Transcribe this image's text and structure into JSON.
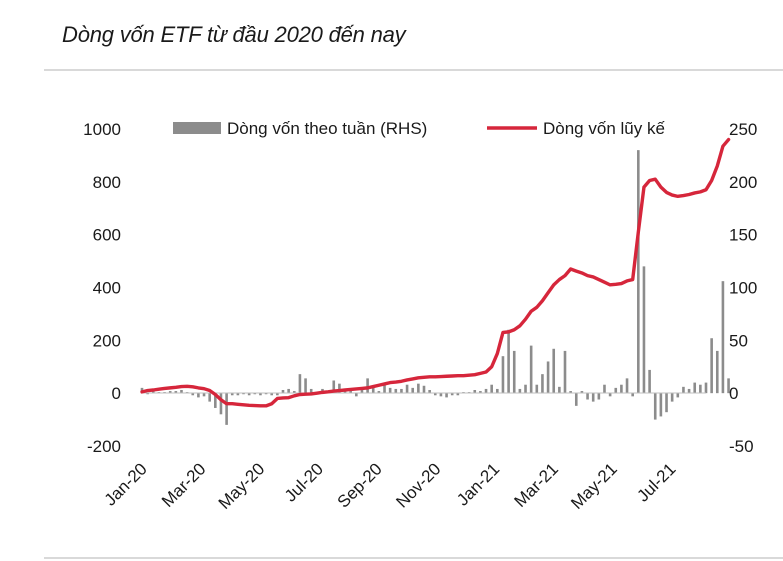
{
  "chart_data": {
    "type": "bar+line",
    "title": "Dòng vốn ETF từ đầu 2020 đến nay",
    "y_left": {
      "ylim": [
        -200,
        1000
      ],
      "ticks": [
        "1000",
        "800",
        "600",
        "400",
        "200",
        "0",
        "-200"
      ],
      "values": [
        1000,
        800,
        600,
        400,
        200,
        0,
        -200
      ]
    },
    "y_right": {
      "ylim": [
        -50,
        250
      ],
      "ticks": [
        "250",
        "200",
        "150",
        "100",
        "50",
        "0",
        "-50"
      ],
      "values": [
        250,
        200,
        150,
        100,
        50,
        0,
        -50
      ]
    },
    "x_ticks": [
      "Jan-20",
      "Mar-20",
      "May-20",
      "Jul-20",
      "Sep-20",
      "Nov-20",
      "Jan-21",
      "Mar-21",
      "May-21",
      "Jul-21"
    ],
    "legend": [
      {
        "name": "Dòng vốn theo tuần (RHS)",
        "kind": "bar",
        "color": "#8c8c8c"
      },
      {
        "name": "Dòng vốn lũy kế",
        "kind": "line",
        "color": "#d6263b"
      }
    ],
    "series": [
      {
        "name": "Dòng vốn theo tuần (RHS)",
        "axis": "right",
        "week_index_start": 0,
        "values": [
          5,
          -1,
          2,
          1,
          1,
          2,
          2,
          3,
          1,
          -2,
          -4,
          -3,
          -8,
          -14,
          -20,
          -30,
          -2,
          -2,
          -1,
          -2,
          -1,
          -2,
          -1,
          -2,
          -2,
          3,
          4,
          2,
          18,
          14,
          4,
          1,
          4,
          1,
          12,
          9,
          4,
          2,
          -3,
          4,
          14,
          6,
          2,
          8,
          5,
          4,
          4,
          8,
          5,
          9,
          7,
          3,
          -2,
          -3,
          -4,
          -2,
          -2,
          1,
          1,
          3,
          2,
          4,
          8,
          4,
          35,
          60,
          40,
          4,
          8,
          45,
          8,
          18,
          30,
          42,
          6,
          40,
          2,
          -12,
          2,
          -6,
          -8,
          -6,
          8,
          -3,
          5,
          8,
          14,
          -3,
          230,
          120,
          22,
          -25,
          -22,
          -18,
          -8,
          -4,
          6,
          4,
          10,
          8,
          10,
          52,
          40,
          106,
          14
        ],
        "color": "#8c8c8c"
      },
      {
        "name": "Dòng vốn lũy kế",
        "axis": "left",
        "week_index_start": 0,
        "values": [
          5,
          10,
          12,
          15,
          18,
          20,
          22,
          25,
          26,
          24,
          20,
          17,
          10,
          -5,
          -25,
          -40,
          -40,
          -42,
          -44,
          -46,
          -47,
          -48,
          -48,
          -40,
          -20,
          -18,
          -17,
          -10,
          -5,
          -4,
          -3,
          0,
          3,
          5,
          8,
          10,
          12,
          14,
          16,
          18,
          20,
          25,
          30,
          35,
          40,
          42,
          45,
          50,
          54,
          58,
          60,
          62,
          62,
          63,
          64,
          65,
          66,
          66,
          68,
          70,
          75,
          80,
          100,
          150,
          230,
          232,
          240,
          255,
          280,
          310,
          325,
          350,
          380,
          410,
          430,
          445,
          470,
          462,
          455,
          445,
          440,
          430,
          420,
          410,
          412,
          415,
          425,
          430,
          610,
          780,
          805,
          810,
          780,
          760,
          750,
          745,
          748,
          752,
          758,
          762,
          770,
          805,
          860,
          935,
          960
        ],
        "color": "#d6263b"
      }
    ]
  }
}
